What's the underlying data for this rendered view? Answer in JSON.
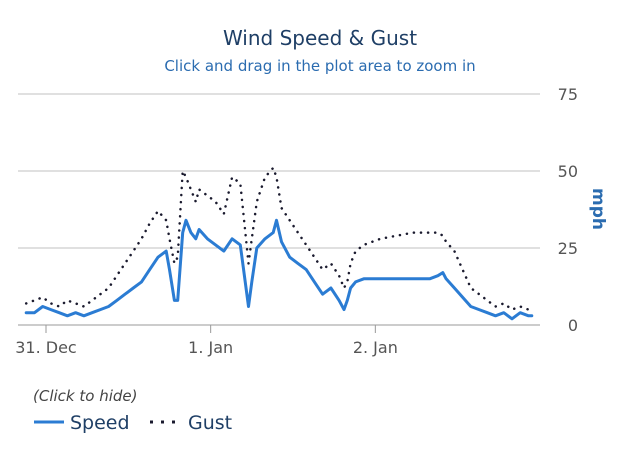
{
  "chart_data": {
    "type": "line",
    "title": "Wind Speed & Gust",
    "subtitle": "Click and drag in the plot area to zoom in",
    "ylabel": "mph",
    "ylim": [
      0,
      75
    ],
    "yticks": [
      "0",
      "25",
      "50",
      "75"
    ],
    "x_range": [
      0.0,
      3.17
    ],
    "xticks": [
      {
        "label": "31. Dec",
        "x": 0.17
      },
      {
        "label": "1. Jan",
        "x": 1.17
      },
      {
        "label": "2. Jan",
        "x": 2.17
      }
    ],
    "grid": true,
    "legend_placement": "bottom-left",
    "legend_hint": "(Click to hide)",
    "series": [
      {
        "name": "Speed",
        "style": "solid",
        "color": "#2b7cd3",
        "x": [
          0.05,
          0.1,
          0.15,
          0.2,
          0.25,
          0.3,
          0.35,
          0.4,
          0.45,
          0.5,
          0.55,
          0.6,
          0.65,
          0.7,
          0.75,
          0.8,
          0.85,
          0.9,
          0.92,
          0.95,
          0.97,
          1.0,
          1.02,
          1.05,
          1.08,
          1.1,
          1.15,
          1.2,
          1.25,
          1.3,
          1.35,
          1.4,
          1.42,
          1.45,
          1.5,
          1.55,
          1.57,
          1.6,
          1.65,
          1.7,
          1.75,
          1.8,
          1.85,
          1.9,
          1.95,
          1.98,
          2.0,
          2.02,
          2.05,
          2.1,
          2.2,
          2.3,
          2.4,
          2.5,
          2.55,
          2.58,
          2.6,
          2.65,
          2.7,
          2.75,
          2.8,
          2.85,
          2.9,
          2.95,
          3.0,
          3.05,
          3.1,
          3.12
        ],
        "values": [
          4,
          4,
          6,
          5,
          4,
          3,
          4,
          3,
          4,
          5,
          6,
          8,
          10,
          12,
          14,
          18,
          22,
          24,
          18,
          8,
          8,
          30,
          34,
          30,
          28,
          31,
          28,
          26,
          24,
          28,
          26,
          6,
          14,
          25,
          28,
          30,
          34,
          27,
          22,
          20,
          18,
          14,
          10,
          12,
          8,
          5,
          8,
          12,
          14,
          15,
          15,
          15,
          15,
          15,
          16,
          17,
          15,
          12,
          9,
          6,
          5,
          4,
          3,
          4,
          2,
          4,
          3,
          3
        ]
      },
      {
        "name": "Gust",
        "style": "dotted",
        "color": "#1a1a2e",
        "x": [
          0.05,
          0.1,
          0.15,
          0.2,
          0.25,
          0.3,
          0.35,
          0.4,
          0.45,
          0.5,
          0.55,
          0.6,
          0.65,
          0.7,
          0.75,
          0.8,
          0.85,
          0.9,
          0.92,
          0.95,
          0.97,
          1.0,
          1.02,
          1.05,
          1.08,
          1.1,
          1.15,
          1.2,
          1.25,
          1.3,
          1.35,
          1.4,
          1.42,
          1.45,
          1.5,
          1.55,
          1.57,
          1.6,
          1.65,
          1.7,
          1.75,
          1.8,
          1.85,
          1.9,
          1.95,
          1.98,
          2.0,
          2.02,
          2.05,
          2.1,
          2.2,
          2.3,
          2.4,
          2.5,
          2.55,
          2.58,
          2.6,
          2.65,
          2.7,
          2.75,
          2.8,
          2.85,
          2.9,
          2.95,
          3.0,
          3.05,
          3.1,
          3.12
        ],
        "values": [
          7,
          8,
          9,
          7,
          6,
          8,
          7,
          6,
          8,
          10,
          12,
          16,
          20,
          24,
          28,
          33,
          37,
          34,
          28,
          20,
          22,
          50,
          48,
          44,
          40,
          44,
          42,
          40,
          36,
          48,
          46,
          20,
          28,
          40,
          48,
          51,
          48,
          38,
          34,
          30,
          26,
          22,
          18,
          20,
          16,
          12,
          14,
          20,
          24,
          26,
          28,
          29,
          30,
          30,
          30,
          29,
          27,
          24,
          18,
          12,
          10,
          8,
          6,
          7,
          5,
          6,
          5,
          6
        ]
      }
    ]
  }
}
